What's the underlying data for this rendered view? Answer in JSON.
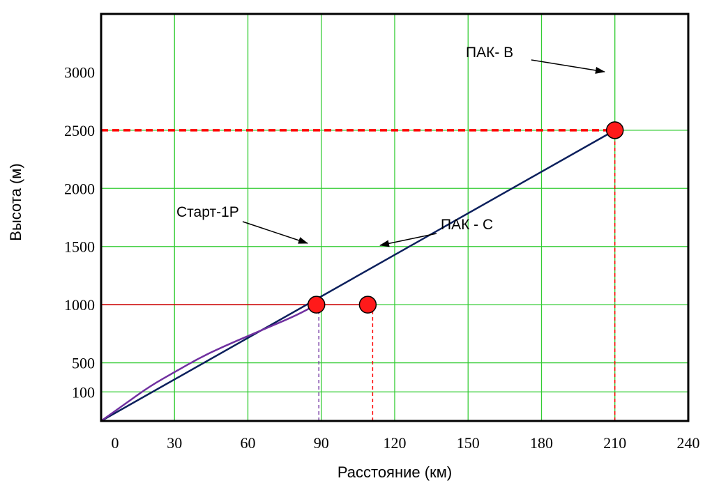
{
  "chart_data": {
    "type": "line",
    "xlabel": "Расстояние (км)",
    "ylabel": "Высота (м)",
    "xlim": [
      0,
      240
    ],
    "ylim": [
      0,
      3000
    ],
    "x_ticks": [
      0,
      30,
      60,
      90,
      120,
      150,
      180,
      210,
      240
    ],
    "x_tick_labels": [
      "0",
      "30",
      "60",
      "90",
      "120",
      "150",
      "180",
      "210",
      "240"
    ],
    "y_ticks": [
      100,
      500,
      1000,
      1500,
      2000,
      2500,
      3000
    ],
    "y_tick_labels": [
      "100",
      "500",
      "1000",
      "1500",
      "2000",
      "2500",
      "3000"
    ],
    "y_tick_positions": [
      0.5,
      1,
      2,
      3,
      4,
      5,
      6
    ],
    "x_grid": [
      30,
      60,
      90,
      120,
      150,
      180,
      210
    ],
    "y_grid": [
      0.5,
      1,
      2,
      3,
      4,
      5
    ],
    "grid": true,
    "series": [
      {
        "role": "straight-trajectory",
        "color": "#0b1f5c",
        "points": [
          [
            0,
            0
          ],
          [
            210,
            2500
          ]
        ]
      },
      {
        "role": "curved-trajectory",
        "color": "#7030a0",
        "points": [
          [
            0,
            0
          ],
          [
            10,
            150
          ],
          [
            20,
            300
          ],
          [
            30,
            420
          ],
          [
            40,
            540
          ],
          [
            50,
            640
          ],
          [
            60,
            730
          ],
          [
            70,
            820
          ],
          [
            80,
            910
          ],
          [
            88,
            1000
          ]
        ]
      }
    ],
    "points": [
      {
        "label": "Старт-1Р",
        "x": 88,
        "y": 1000
      },
      {
        "label": "ПАК - С",
        "x": 109,
        "y": 1000
      },
      {
        "label": "ПАК- В",
        "x": 210,
        "y": 2500
      }
    ],
    "reference_lines": [
      {
        "kind": "horizontal",
        "y": 1000,
        "x_to": 109,
        "color": "#cc0000",
        "style": "solid"
      },
      {
        "kind": "horizontal",
        "y": 2500,
        "x_to": 210,
        "color": "#ff0000",
        "style": "dashed"
      },
      {
        "kind": "vertical",
        "x": 89,
        "y_to": 1000,
        "color": "#7030a0",
        "style": "dashed"
      },
      {
        "kind": "vertical",
        "x": 111,
        "y_to": 1000,
        "color": "#ff0000",
        "style": "dashed"
      },
      {
        "kind": "vertical",
        "x": 210,
        "y_to": 2500,
        "color": "#ff0000",
        "style": "dashed"
      }
    ],
    "colors": {
      "grid": "#33cc33",
      "point_fill": "#ff1a1a",
      "axis": "#000000"
    }
  }
}
